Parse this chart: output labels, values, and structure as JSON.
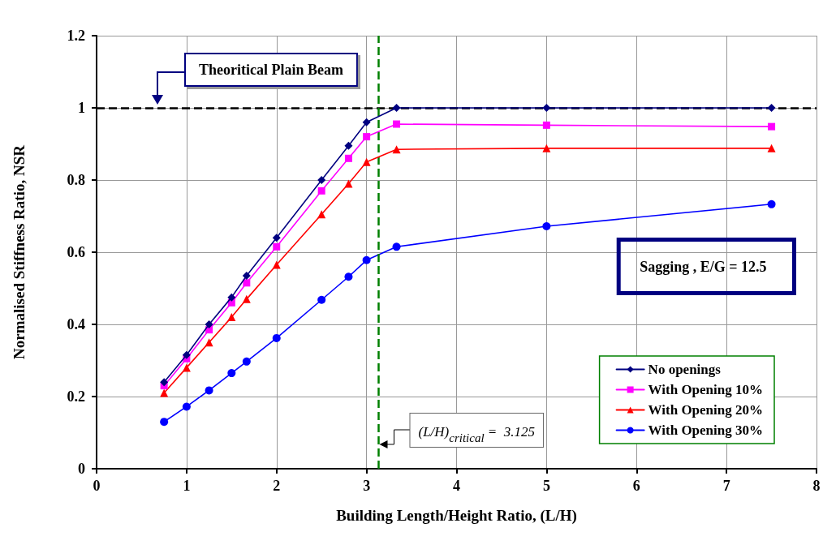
{
  "chart_data": {
    "type": "line",
    "xlabel": "Building Length/Height Ratio, (L/H)",
    "ylabel": "Normalised Stiffness Ratio, NSR",
    "x": [
      0.75,
      1,
      1.25,
      1.5,
      1.667,
      2,
      2.5,
      2.8,
      3,
      3.333,
      5,
      7.5
    ],
    "series": [
      {
        "name": "No openings",
        "color": "#000080",
        "marker": "diamond",
        "values": [
          0.24,
          0.315,
          0.4,
          0.475,
          0.535,
          0.64,
          0.8,
          0.895,
          0.96,
          1.0,
          1.0,
          1.0
        ]
      },
      {
        "name": "With Opening 10%",
        "color": "#ff00ff",
        "marker": "square",
        "values": [
          0.23,
          0.305,
          0.385,
          0.46,
          0.515,
          0.615,
          0.77,
          0.86,
          0.92,
          0.955,
          0.952,
          0.948
        ]
      },
      {
        "name": "With Opening 20%",
        "color": "#ff0000",
        "marker": "triangle",
        "values": [
          0.21,
          0.28,
          0.35,
          0.42,
          0.47,
          0.565,
          0.705,
          0.79,
          0.85,
          0.885,
          0.888,
          0.888
        ]
      },
      {
        "name": "With Opening 30%",
        "color": "#0000ff",
        "marker": "circle",
        "values": [
          0.13,
          0.172,
          0.217,
          0.265,
          0.297,
          0.362,
          0.468,
          0.532,
          0.578,
          0.615,
          0.672,
          0.733
        ]
      }
    ],
    "xlim": [
      0,
      8
    ],
    "xticks": [
      0,
      1,
      2,
      3,
      4,
      5,
      6,
      7,
      8
    ],
    "ylim": [
      0,
      1.2
    ],
    "yticks": [
      0,
      0.2,
      0.4,
      0.6,
      0.8,
      1,
      1.2
    ],
    "grid": true,
    "legend": "bottom right",
    "line_style": "solid",
    "ref_lines": [
      {
        "axis": "y",
        "value": 1,
        "label": "Theoritical Plain Beam",
        "color": "#000000",
        "line_style": "dashed"
      },
      {
        "axis": "x",
        "value": 3.125,
        "label": "(L/H)$_{critical}$ =  3.125",
        "color": "#008000",
        "line_style": "dashed"
      }
    ],
    "annotations": [
      "Sagging , E/G = 12.5"
    ]
  }
}
